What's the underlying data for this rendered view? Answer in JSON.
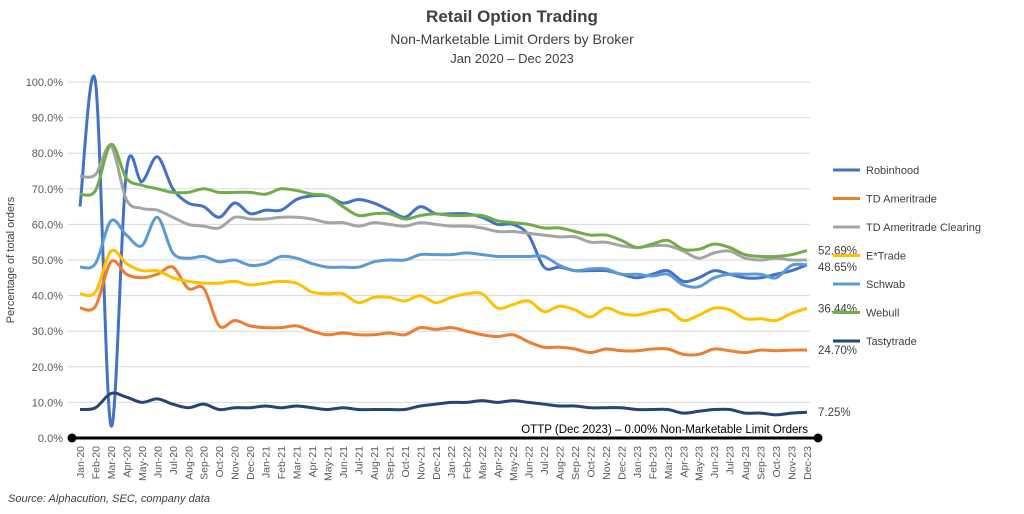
{
  "chart_data": {
    "type": "line",
    "title": "Retail Option Trading",
    "subtitle": "Non-Marketable Limit Orders by Broker",
    "subtitle2": "Jan 2020 – Dec 2023",
    "ylabel": "Percentage of total orders",
    "xlabel": "",
    "ylim": [
      0,
      100
    ],
    "yticks": [
      "0.0%",
      "10.0%",
      "20.0%",
      "30.0%",
      "40.0%",
      "50.0%",
      "60.0%",
      "70.0%",
      "80.0%",
      "90.0%",
      "100.0%"
    ],
    "grid": true,
    "legend_position": "right",
    "categories": [
      "Jan-20",
      "Feb-20",
      "Mar-20",
      "Apr-20",
      "May-20",
      "Jun-20",
      "Jul-20",
      "Aug-20",
      "Sep-20",
      "Oct-20",
      "Nov-20",
      "Dec-20",
      "Jan-21",
      "Feb-21",
      "Mar-21",
      "Apr-21",
      "May-21",
      "Jun-21",
      "Jul-21",
      "Aug-21",
      "Sep-21",
      "Oct-21",
      "Nov-21",
      "Dec-21",
      "Jan-22",
      "Feb-22",
      "Mar-22",
      "Apr-22",
      "May-22",
      "Jun-22",
      "Jul-22",
      "Aug-22",
      "Sep-22",
      "Oct-22",
      "Nov-22",
      "Dec-22",
      "Jan-23",
      "Feb-23",
      "Mar-23",
      "Apr-23",
      "May-23",
      "Jun-23",
      "Jul-23",
      "Aug-23",
      "Sep-23",
      "Oct-23",
      "Nov-23",
      "Dec-23"
    ],
    "series": [
      {
        "name": "Robinhood",
        "color": "#4472C4",
        "values": [
          65,
          100,
          3.5,
          75,
          72,
          79,
          70,
          66,
          65,
          62,
          66,
          63,
          64,
          64,
          67,
          68,
          68,
          66,
          67,
          66,
          64,
          62,
          65,
          63,
          63,
          63,
          62,
          60,
          60,
          57,
          48,
          48,
          47,
          47,
          47,
          46,
          45,
          46,
          47,
          44,
          45,
          47,
          46,
          45,
          45,
          46,
          47,
          48.65
        ]
      },
      {
        "name": "TD Ameritrade",
        "color": "#ED7D31",
        "values": [
          36.5,
          37,
          49.5,
          46,
          45,
          46,
          48,
          42,
          42,
          31.5,
          33,
          31.5,
          31,
          31,
          31.5,
          30,
          29,
          29.5,
          29,
          29,
          29.5,
          29,
          31,
          30.5,
          31,
          30,
          29,
          28.5,
          29,
          27,
          25.5,
          25.5,
          25,
          24,
          25,
          24.5,
          24.5,
          25,
          25,
          23.5,
          23.5,
          25,
          24.5,
          24,
          24.7,
          24.5,
          24.7,
          24.7
        ]
      },
      {
        "name": "TD Ameritrade Clearing",
        "color": "#A5A5A5",
        "values": [
          73.5,
          74,
          82,
          67,
          64.5,
          64,
          62,
          60,
          59.5,
          59,
          62,
          61.5,
          61.5,
          62,
          62,
          61.5,
          60.5,
          60.5,
          59.5,
          60.5,
          60,
          59.5,
          60.5,
          60,
          59.5,
          59.5,
          59,
          58,
          58,
          57.5,
          57,
          56.5,
          56.5,
          55,
          55,
          54,
          53.5,
          54,
          54,
          52.5,
          50.5,
          52,
          52.5,
          50.5,
          50,
          50.5,
          50,
          50
        ]
      },
      {
        "name": "E*Trade",
        "color": "#FFC000",
        "values": [
          40.5,
          41,
          52.5,
          49,
          47,
          47,
          45,
          44,
          43.5,
          43.5,
          44,
          43,
          43.5,
          44,
          43.5,
          41,
          40.5,
          40.5,
          38,
          39.5,
          39.5,
          38.5,
          40,
          38,
          39.5,
          40.5,
          40.5,
          36.5,
          37.5,
          38.5,
          35.5,
          37,
          36,
          34,
          36.5,
          35,
          34.5,
          35.5,
          36,
          33,
          34.5,
          36.5,
          36,
          33.5,
          33.5,
          33,
          35,
          36.44
        ]
      },
      {
        "name": "Schwab",
        "color": "#5B9BD5",
        "values": [
          48,
          49,
          61,
          57,
          54,
          62,
          52,
          50.5,
          51,
          49.5,
          50,
          48.5,
          49,
          51,
          50.5,
          49,
          48,
          48,
          48,
          49.5,
          50,
          50,
          51.5,
          51.5,
          51.5,
          52,
          51.5,
          51,
          51,
          51,
          51,
          48.5,
          47,
          47.5,
          47.5,
          46,
          46,
          45.5,
          46,
          43,
          42.5,
          45,
          46,
          46,
          46,
          45,
          48.5,
          48.65
        ]
      },
      {
        "name": "Webull",
        "color": "#70AD47",
        "values": [
          68.5,
          69.5,
          82.5,
          73,
          71,
          70,
          69,
          69,
          70,
          69,
          69,
          69,
          68.5,
          70,
          69.5,
          68.5,
          68,
          65,
          62.5,
          63,
          63,
          61.5,
          62.5,
          63,
          62.5,
          62.5,
          62.5,
          61,
          60.5,
          60,
          59,
          59,
          58,
          57,
          57,
          55.5,
          53.5,
          54.5,
          55.5,
          53,
          53,
          54.5,
          53.5,
          51.5,
          51,
          51,
          51.5,
          52.69
        ]
      },
      {
        "name": "Tastytrade",
        "color": "#264478",
        "values": [
          8,
          8.5,
          12.5,
          11.5,
          10,
          11,
          9.5,
          8.5,
          9.5,
          8,
          8.5,
          8.5,
          9,
          8.5,
          9,
          8.5,
          8,
          8.5,
          8,
          8,
          8,
          8,
          9,
          9.5,
          10,
          10,
          10.5,
          10,
          10.5,
          10,
          9.5,
          9,
          9,
          8.5,
          8.5,
          8.5,
          8,
          8,
          8,
          7,
          7.5,
          8,
          8,
          7,
          7,
          6.5,
          7,
          7.25
        ]
      }
    ],
    "end_labels": [
      {
        "text": "52.69%",
        "value": 52.69
      },
      {
        "text": "48.65%",
        "value": 48.65
      },
      {
        "text": "36.44%",
        "value": 36.44
      },
      {
        "text": "24.70%",
        "value": 24.7
      },
      {
        "text": "7.25%",
        "value": 7.25
      }
    ],
    "annotation": "OTTP (Dec 2023) – 0.00% Non-Marketable Limit Orders",
    "source": "Source: Alphacution, SEC, company data"
  }
}
